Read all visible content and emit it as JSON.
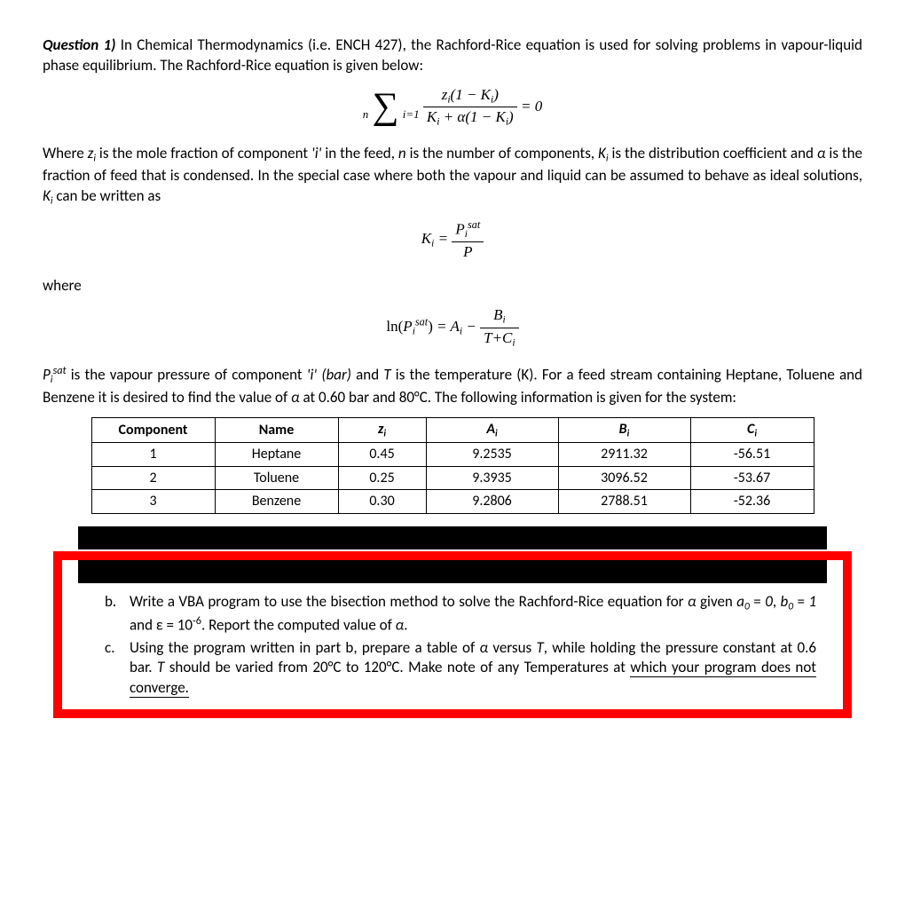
{
  "q_label": "Question 1)",
  "q_intro": " In Chemical Thermodynamics (i.e. ENCH 427), the Rachford-Rice equation is used for solving problems in vapour-liquid phase equilibrium. The Rachford-Rice equation is given below:",
  "eq1": {
    "sum_upper": "n",
    "sum_lower": "i=1",
    "numerator_pre": "z",
    "numerator_post": "(1 − K",
    "numerator_end": ")",
    "den_pre": "K",
    "den_mid": " + α(1 − K",
    "den_end": ")",
    "rhs": " = 0"
  },
  "p2a": "Where ",
  "p2_zi": "z",
  "p2b": " is the mole fraction of component ",
  "p2_i": "'i'",
  "p2c": " in the feed, ",
  "p2_n": "n",
  "p2d": " is the number of components, ",
  "p2_K": "K",
  "p2e": " is the distribution coefficient and ",
  "p2_alpha": "α",
  "p2f": " is the fraction of feed that is condensed. In the special case where both the vapour and liquid can be assumed to behave as ideal solutions, ",
  "p2g": " can be written as",
  "eq2": {
    "lhs_pre": "K",
    "eq": " = ",
    "num_pre": "P",
    "num_sup": "sat",
    "den": "P"
  },
  "where": "where",
  "eq3": {
    "ln": "ln",
    "p": "P",
    "sup": "sat",
    "eq": " = A",
    "minus": " − ",
    "num": "B",
    "den_pre": "T+C"
  },
  "p3a_pre": "P",
  "p3a_sup": "sat",
  "p3a": " is the vapour pressure of component ",
  "p3_ibar": " (bar)",
  "p3b": " and ",
  "p3_T": "T",
  "p3c": " is the temperature (K).  For a feed stream containing Heptane, Toluene and Benzene it is desired to find the value of ",
  "p3d": " at 0.60 bar and 80°C. The following information is given for the system:",
  "table": {
    "headers": [
      "Component",
      "Name",
      "zᵢ",
      "Aᵢ",
      "Bᵢ",
      "Cᵢ"
    ],
    "rows": [
      [
        "1",
        "Heptane",
        "0.45",
        "9.2535",
        "2911.32",
        "-56.51"
      ],
      [
        "2",
        "Toluene",
        "0.25",
        "9.3935",
        "3096.52",
        "-53.67"
      ],
      [
        "3",
        "Benzene",
        "0.30",
        "9.2806",
        "2788.51",
        "-52.36"
      ]
    ],
    "col_widths": [
      "110px",
      "110px",
      "70px",
      "120px",
      "120px",
      "110px"
    ]
  },
  "part_b_marker": "b.",
  "part_b_text_a": "Write a VBA program to use the bisection method to solve the Rachford-Rice equation for ",
  "part_b_alpha": "α",
  "part_b_text_b": " given ",
  "part_b_params_html": "a₀ = 0, b₀ = 1 and ε = 10⁻⁶",
  "part_b_text_c": ". Report the computed value of ",
  "part_b_text_d": ".",
  "part_c_marker": "c.",
  "part_c_a": "Using the program written in part b, prepare a table of ",
  "part_c_b": " versus ",
  "part_c_T": "T",
  "part_c_c": ", while holding the pressure constant at 0.6 bar. ",
  "part_c_d": " should be varied from 20°C to 120°C. Make note of any Temperatures at ",
  "part_c_last": "which your program does not converge.",
  "colors": {
    "red": "#ff0000",
    "black": "#000000",
    "bg": "#ffffff"
  }
}
